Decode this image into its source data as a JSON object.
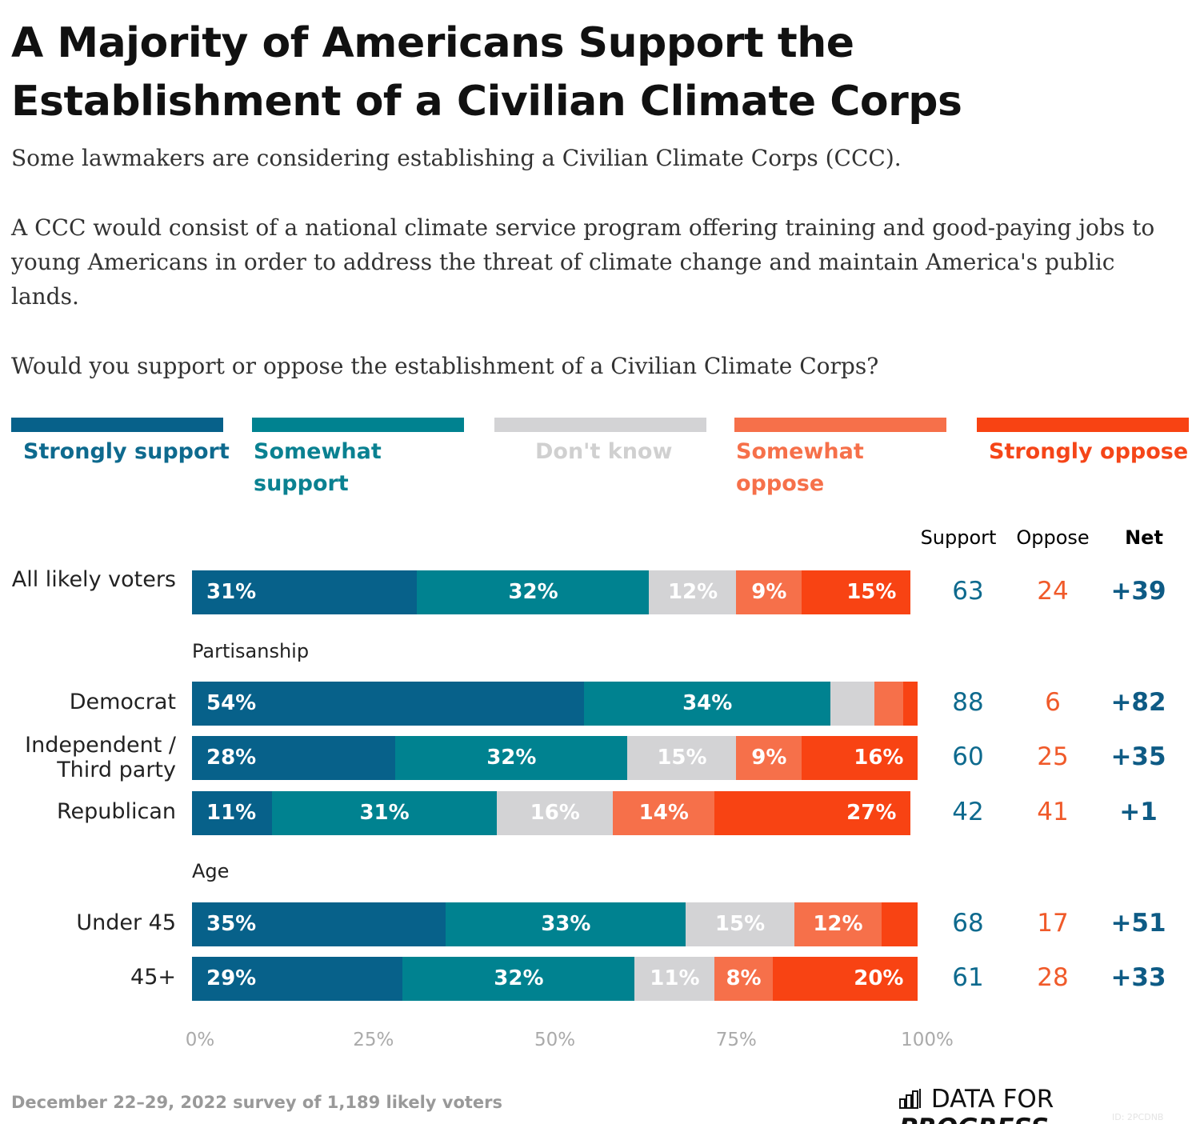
{
  "title": "A Majority of Americans Support the Establishment of a Civilian Climate Corps",
  "paragraphs": [
    "Some lawmakers are considering establishing a Civilian Climate Corps (CCC).",
    "A CCC would consist of a national climate service program offering training and good-paying jobs to young Americans in order to address the threat of climate change and maintain America's public lands.",
    "Would you support or oppose the establishment of a Civilian Climate Corps?"
  ],
  "chart_data": {
    "type": "bar",
    "orientation": "horizontal-stacked-100",
    "legend_position": "top",
    "series": [
      {
        "name": "Strongly support",
        "color": "#07618a"
      },
      {
        "name": "Somewhat support",
        "color": "#008290"
      },
      {
        "name": "Don't know",
        "color": "#d3d3d5"
      },
      {
        "name": "Somewhat oppose",
        "color": "#f6704a"
      },
      {
        "name": "Strongly oppose",
        "color": "#f84313"
      }
    ],
    "column_headers": {
      "support": "Support",
      "oppose": "Oppose",
      "net": "Net"
    },
    "groups": [
      {
        "label": "",
        "rows": [
          {
            "label": "All likely voters",
            "values": [
              31,
              32,
              12,
              9,
              15
            ],
            "support": "63",
            "oppose": "24",
            "net": "+39"
          }
        ]
      },
      {
        "label": "Partisanship",
        "rows": [
          {
            "label": "Democrat",
            "values": [
              54,
              34,
              6,
              4,
              2
            ],
            "support": "88",
            "oppose": "6",
            "net": "+82"
          },
          {
            "label": "Independent / Third party",
            "values": [
              28,
              32,
              15,
              9,
              16
            ],
            "support": "60",
            "oppose": "25",
            "net": "+35"
          },
          {
            "label": "Republican",
            "values": [
              11,
              31,
              16,
              14,
              27
            ],
            "support": "42",
            "oppose": "41",
            "net": "+1"
          }
        ]
      },
      {
        "label": "Age",
        "rows": [
          {
            "label": "Under 45",
            "values": [
              35,
              33,
              15,
              12,
              5
            ],
            "support": "68",
            "oppose": "17",
            "net": "+51"
          },
          {
            "label": "45+",
            "values": [
              29,
              32,
              11,
              8,
              20
            ],
            "support": "61",
            "oppose": "28",
            "net": "+33"
          }
        ]
      }
    ],
    "x_ticks": [
      "0%",
      "25%",
      "50%",
      "75%",
      "100%"
    ],
    "xlim": [
      0,
      100
    ]
  },
  "colors": {
    "support_text": "#0e6a8e",
    "oppose_text": "#f05a2a",
    "net_text": "#0e5b85"
  },
  "footer": "December 22–29, 2022 survey of 1,189 likely voters",
  "logo": {
    "light": "DATA FOR",
    "bold": "PROGRESS"
  },
  "id_text": "ID: 2PCDNB"
}
